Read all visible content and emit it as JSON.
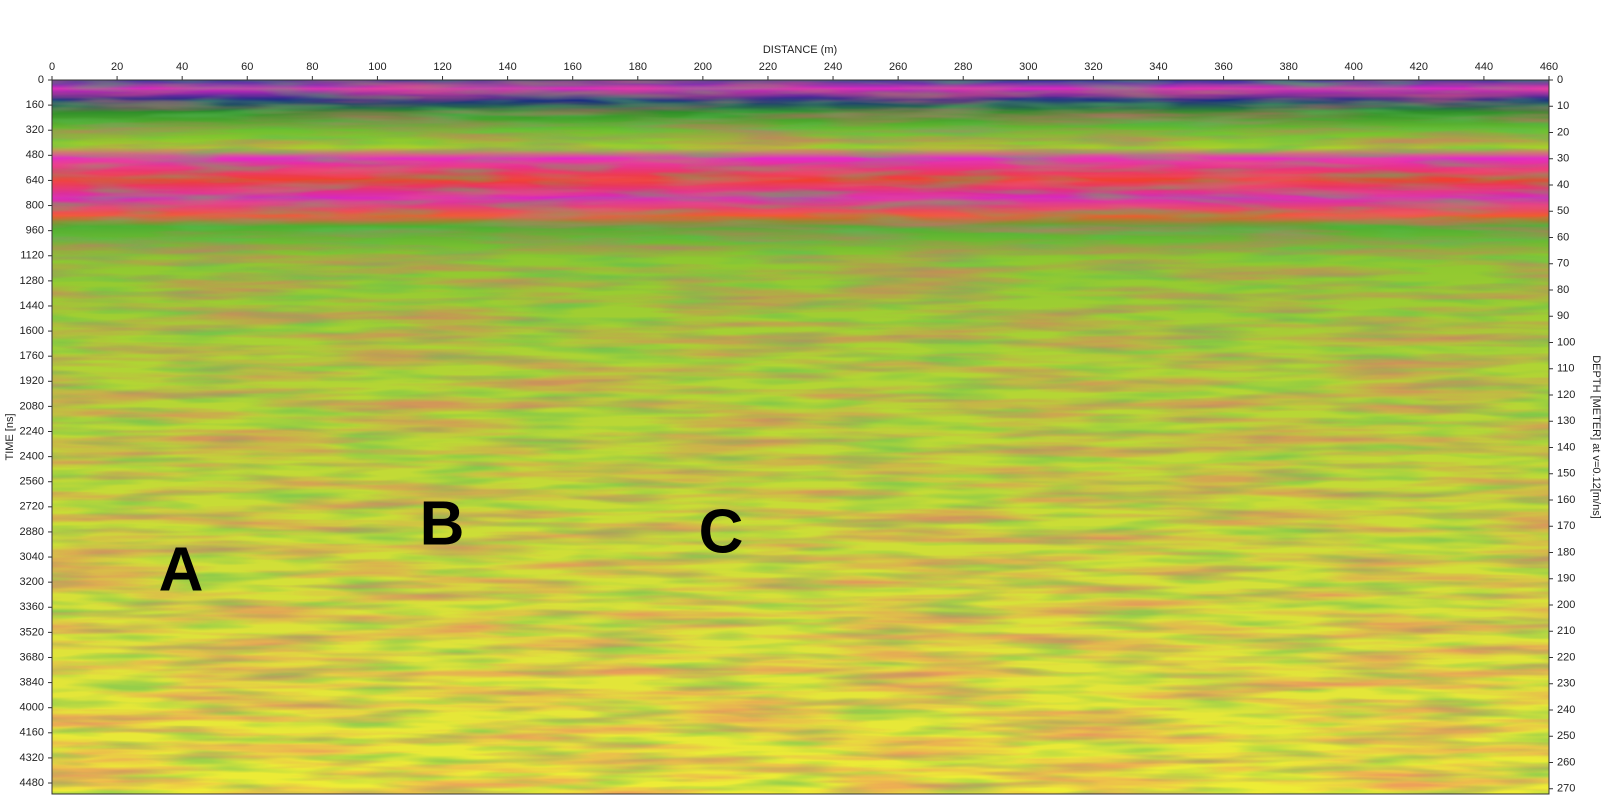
{
  "chart_data": {
    "type": "radargram",
    "x_label": "DISTANCE (m)",
    "y_label": "TIME [ns]",
    "y2_label": "DEPTH [METER] at v=0.12[m/ns]",
    "xlim": [
      0,
      460
    ],
    "xticks": [
      0,
      20,
      40,
      60,
      80,
      100,
      120,
      140,
      160,
      180,
      200,
      220,
      240,
      260,
      280,
      300,
      320,
      340,
      360,
      380,
      400,
      420,
      440,
      460
    ],
    "ylim": [
      0,
      4550
    ],
    "yticks": [
      0,
      160,
      320,
      480,
      640,
      800,
      960,
      1120,
      1280,
      1440,
      1600,
      1760,
      1920,
      2080,
      2240,
      2400,
      2560,
      2720,
      2880,
      3040,
      3200,
      3360,
      3520,
      3680,
      3840,
      4000,
      4160,
      4320,
      4480
    ],
    "y2lim": [
      0,
      272
    ],
    "y2ticks": [
      0,
      10,
      20,
      30,
      40,
      50,
      60,
      70,
      80,
      90,
      100,
      110,
      120,
      130,
      140,
      150,
      160,
      170,
      180,
      190,
      200,
      210,
      220,
      230,
      240,
      250,
      260,
      270
    ],
    "y_inverted": true,
    "annotations": [
      "A",
      "B",
      "C"
    ]
  }
}
